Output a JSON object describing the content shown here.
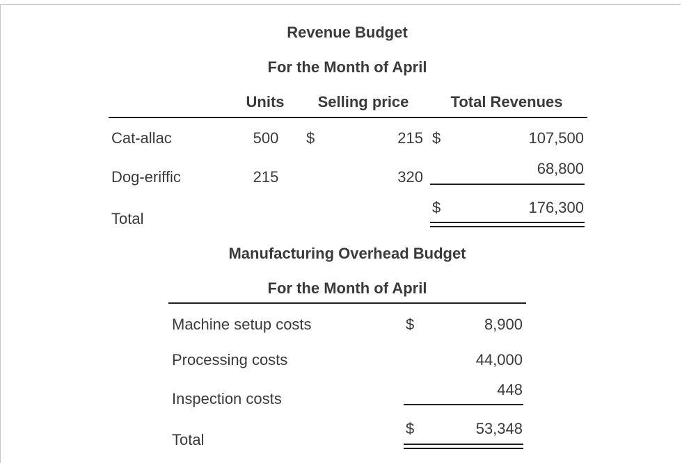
{
  "revenue_budget": {
    "title": "Revenue Budget",
    "subtitle": "For the Month of April",
    "headers": {
      "units": "Units",
      "selling_price": "Selling price",
      "total_revenues": "Total Revenues"
    },
    "rows": [
      {
        "label": "Cat-allac",
        "units": "500",
        "price_currency": "$",
        "price": "215",
        "rev_currency": "$",
        "revenue": "107,500"
      },
      {
        "label": "Dog-eriffic",
        "units": "215",
        "price": "320",
        "revenue": "68,800"
      }
    ],
    "total": {
      "label": "Total",
      "currency": "$",
      "value": "176,300"
    }
  },
  "overhead_budget": {
    "title": "Manufacturing Overhead Budget",
    "subtitle": "For the Month of April",
    "rows": [
      {
        "label": "Machine setup costs",
        "currency": "$",
        "value": "8,900"
      },
      {
        "label": "Processing costs",
        "value": "44,000"
      },
      {
        "label": "Inspection costs",
        "value": "448"
      }
    ],
    "total": {
      "label": "Total",
      "currency": "$",
      "value": "53,348"
    }
  }
}
